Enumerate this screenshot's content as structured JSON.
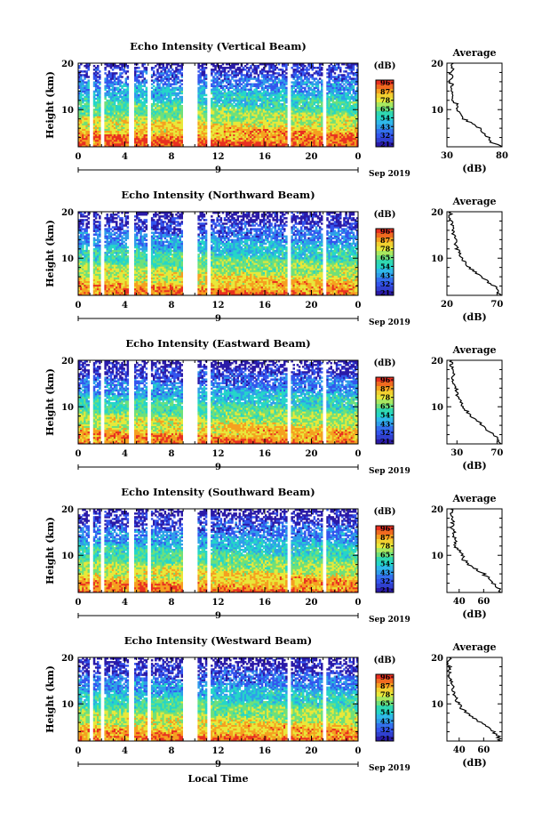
{
  "figure": {
    "xlabel": "Local Time",
    "date_label": "Sep 2019",
    "day_label": "9",
    "x_ticks": [
      "0",
      "4",
      "8",
      "12",
      "16",
      "20",
      "0"
    ],
    "colorbar_unit": "(dB)",
    "colorbar_ticks": [
      "96",
      "87",
      "78",
      "65",
      "54",
      "43",
      "32",
      "21"
    ],
    "average_title": "Average",
    "average_xlabel": "(dB)"
  },
  "chart_data": [
    {
      "type": "heatmap",
      "title": "Echo Intensity (Vertical Beam)",
      "ylabel": "Height (km)",
      "xlim": [
        0,
        24
      ],
      "ylim": [
        2,
        20
      ],
      "y_ticks": [
        "20",
        "10"
      ],
      "data_gaps_hours": [
        [
          1.0,
          1.3
        ],
        [
          2.0,
          2.3
        ],
        [
          4.3,
          4.8
        ],
        [
          6.0,
          6.3
        ],
        [
          9.0,
          10.3
        ],
        [
          11.1,
          11.4
        ],
        [
          17.9,
          18.3
        ],
        [
          21.0,
          21.3
        ]
      ],
      "colorscale": [
        "#2a1aa8",
        "#3355ee",
        "#2f9dea",
        "#25d6c8",
        "#6fe07a",
        "#e8e83a",
        "#f5a020",
        "#e83020"
      ],
      "average": {
        "xlim": [
          30,
          80
        ],
        "x_ticks": [
          "30",
          "80"
        ],
        "y_ticks": [
          "20",
          "10"
        ],
        "profile": [
          [
            80,
            2
          ],
          [
            70,
            3
          ],
          [
            68,
            4
          ],
          [
            62,
            5
          ],
          [
            60,
            6
          ],
          [
            53,
            7
          ],
          [
            45,
            8
          ],
          [
            42,
            9
          ],
          [
            38,
            10
          ],
          [
            40,
            11
          ],
          [
            35,
            12
          ],
          [
            36,
            13
          ],
          [
            33,
            14
          ],
          [
            35,
            15
          ],
          [
            33,
            16
          ],
          [
            34,
            17
          ],
          [
            33,
            18
          ],
          [
            35,
            19
          ],
          [
            36,
            20
          ]
        ]
      }
    },
    {
      "type": "heatmap",
      "title": "Echo Intensity (Northward Beam)",
      "ylabel": "Height (km)",
      "xlim": [
        0,
        24
      ],
      "ylim": [
        2,
        20
      ],
      "y_ticks": [
        "20",
        "10"
      ],
      "data_gaps_hours": [
        [
          1.0,
          1.3
        ],
        [
          2.0,
          2.3
        ],
        [
          4.3,
          4.8
        ],
        [
          6.0,
          6.3
        ],
        [
          9.0,
          10.3
        ],
        [
          11.1,
          11.4
        ],
        [
          17.9,
          18.3
        ],
        [
          21.0,
          21.3
        ]
      ],
      "colorscale": [
        "#2a1aa8",
        "#3355ee",
        "#2f9dea",
        "#25d6c8",
        "#6fe07a",
        "#e8e83a",
        "#f5a020",
        "#e83020"
      ],
      "average": {
        "xlim": [
          20,
          75
        ],
        "x_ticks": [
          "20",
          "70"
        ],
        "y_ticks": [
          "20",
          "10"
        ],
        "profile": [
          [
            74,
            2
          ],
          [
            70,
            3
          ],
          [
            68,
            4
          ],
          [
            60,
            5
          ],
          [
            55,
            6
          ],
          [
            48,
            7
          ],
          [
            42,
            8
          ],
          [
            38,
            9
          ],
          [
            35,
            10
          ],
          [
            33,
            11
          ],
          [
            30,
            12
          ],
          [
            29,
            13
          ],
          [
            28,
            14
          ],
          [
            27,
            15
          ],
          [
            26,
            16
          ],
          [
            25,
            17
          ],
          [
            24,
            18
          ],
          [
            23,
            19
          ],
          [
            24,
            20
          ]
        ]
      }
    },
    {
      "type": "heatmap",
      "title": "Echo Intensity (Eastward Beam)",
      "ylabel": "Height (km)",
      "xlim": [
        0,
        24
      ],
      "ylim": [
        2,
        20
      ],
      "y_ticks": [
        "20",
        "10"
      ],
      "data_gaps_hours": [
        [
          1.0,
          1.3
        ],
        [
          2.0,
          2.3
        ],
        [
          4.3,
          4.8
        ],
        [
          6.0,
          6.3
        ],
        [
          9.0,
          10.3
        ],
        [
          11.1,
          11.4
        ],
        [
          17.9,
          18.3
        ],
        [
          21.0,
          21.3
        ]
      ],
      "colorscale": [
        "#2a1aa8",
        "#3355ee",
        "#2f9dea",
        "#25d6c8",
        "#6fe07a",
        "#e8e83a",
        "#f5a020",
        "#e83020"
      ],
      "average": {
        "xlim": [
          20,
          75
        ],
        "x_ticks": [
          "30",
          "70"
        ],
        "y_ticks": [
          "20",
          "10"
        ],
        "profile": [
          [
            74,
            2
          ],
          [
            70,
            3
          ],
          [
            67,
            4
          ],
          [
            60,
            5
          ],
          [
            56,
            6
          ],
          [
            50,
            7
          ],
          [
            43,
            8
          ],
          [
            40,
            9
          ],
          [
            36,
            10
          ],
          [
            34,
            11
          ],
          [
            31,
            12
          ],
          [
            30,
            13
          ],
          [
            29,
            14
          ],
          [
            27,
            15
          ],
          [
            26,
            16
          ],
          [
            26,
            17
          ],
          [
            25,
            18
          ],
          [
            24,
            19
          ],
          [
            25,
            20
          ]
        ]
      }
    },
    {
      "type": "heatmap",
      "title": "Echo Intensity (Southward Beam)",
      "ylabel": "Height (km)",
      "xlim": [
        0,
        24
      ],
      "ylim": [
        2,
        20
      ],
      "y_ticks": [
        "20",
        "10"
      ],
      "data_gaps_hours": [
        [
          1.0,
          1.3
        ],
        [
          2.0,
          2.3
        ],
        [
          4.3,
          4.8
        ],
        [
          6.0,
          6.3
        ],
        [
          9.0,
          10.3
        ],
        [
          11.1,
          11.4
        ],
        [
          17.9,
          18.3
        ],
        [
          21.0,
          21.3
        ]
      ],
      "colorscale": [
        "#2a1aa8",
        "#3355ee",
        "#2f9dea",
        "#25d6c8",
        "#6fe07a",
        "#e8e83a",
        "#f5a020",
        "#e83020"
      ],
      "average": {
        "xlim": [
          30,
          75
        ],
        "x_ticks": [
          "40",
          "60"
        ],
        "y_ticks": [
          "20",
          "10"
        ],
        "profile": [
          [
            74,
            2
          ],
          [
            72,
            3
          ],
          [
            68,
            4
          ],
          [
            64,
            5
          ],
          [
            60,
            6
          ],
          [
            54,
            7
          ],
          [
            48,
            8
          ],
          [
            44,
            9
          ],
          [
            42,
            10
          ],
          [
            40,
            11
          ],
          [
            37,
            12
          ],
          [
            38,
            13
          ],
          [
            35,
            14
          ],
          [
            36,
            15
          ],
          [
            34,
            16
          ],
          [
            35,
            17
          ],
          [
            33,
            18
          ],
          [
            34,
            19
          ],
          [
            33,
            20
          ]
        ]
      }
    },
    {
      "type": "heatmap",
      "title": "Echo Intensity (Westward Beam)",
      "ylabel": "Height (km)",
      "xlim": [
        0,
        24
      ],
      "ylim": [
        2,
        20
      ],
      "y_ticks": [
        "20",
        "10"
      ],
      "data_gaps_hours": [
        [
          1.0,
          1.3
        ],
        [
          2.0,
          2.3
        ],
        [
          4.3,
          4.8
        ],
        [
          6.0,
          6.3
        ],
        [
          9.0,
          10.3
        ],
        [
          11.1,
          11.4
        ],
        [
          17.9,
          18.3
        ],
        [
          21.0,
          21.3
        ]
      ],
      "colorscale": [
        "#2a1aa8",
        "#3355ee",
        "#2f9dea",
        "#25d6c8",
        "#6fe07a",
        "#e8e83a",
        "#f5a020",
        "#e83020"
      ],
      "average": {
        "xlim": [
          30,
          75
        ],
        "x_ticks": [
          "40",
          "60"
        ],
        "y_ticks": [
          "20",
          "10"
        ],
        "profile": [
          [
            74,
            2
          ],
          [
            72,
            3
          ],
          [
            68,
            4
          ],
          [
            63,
            5
          ],
          [
            58,
            6
          ],
          [
            52,
            7
          ],
          [
            46,
            8
          ],
          [
            42,
            9
          ],
          [
            40,
            10
          ],
          [
            38,
            11
          ],
          [
            36,
            12
          ],
          [
            35,
            13
          ],
          [
            34,
            14
          ],
          [
            33,
            15
          ],
          [
            33,
            16
          ],
          [
            32,
            17
          ],
          [
            32,
            18
          ],
          [
            31,
            19
          ],
          [
            32,
            20
          ]
        ]
      }
    }
  ]
}
